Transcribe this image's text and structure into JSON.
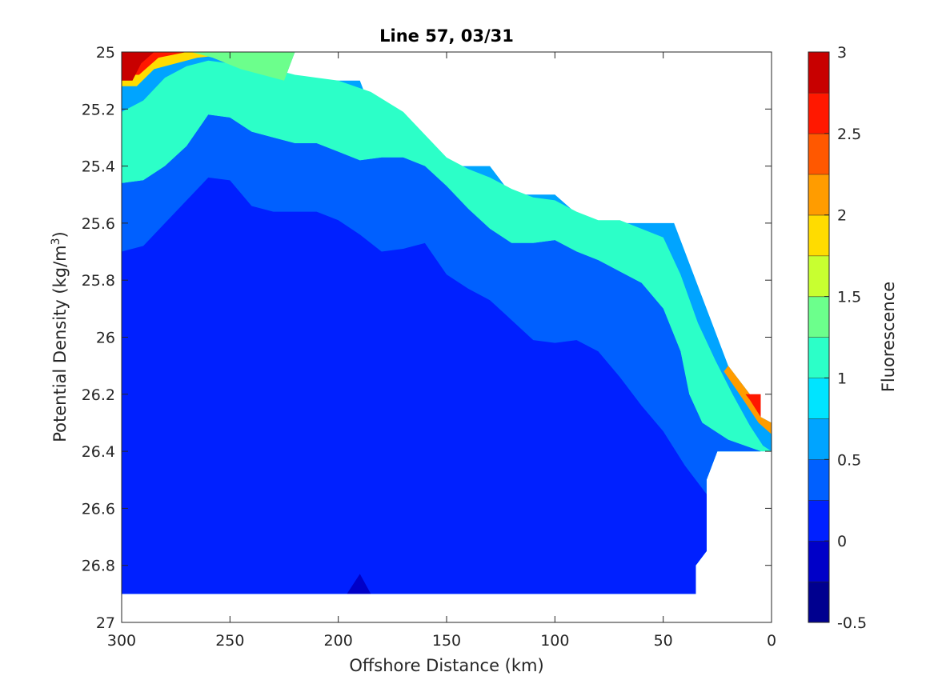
{
  "chart_data": {
    "type": "heatmap",
    "subtype": "filled-contour",
    "title": "Line 57, 03/31",
    "xlabel": "Offshore Distance (km)",
    "ylabel_prefix": "Potential Density (kg/m",
    "ylabel_exponent": "3",
    "ylabel_suffix": ")",
    "colorbar_label": "Fluorescence",
    "xlim": [
      300,
      0
    ],
    "x_reversed": true,
    "ylim": [
      25,
      27
    ],
    "y_reversed": true,
    "x_ticks": [
      "300",
      "250",
      "200",
      "150",
      "100",
      "50",
      "0"
    ],
    "y_ticks": [
      "25",
      "25.2",
      "25.4",
      "25.6",
      "25.8",
      "26",
      "26.2",
      "26.4",
      "26.6",
      "26.8",
      "27"
    ],
    "colorbar_ticks": [
      "3",
      "2.5",
      "2",
      "1.5",
      "1",
      "0.5",
      "0",
      "-0.5"
    ],
    "colorbar_range": [
      -0.5,
      3
    ],
    "levels": [
      -0.5,
      -0.25,
      0,
      0.25,
      0.5,
      0.75,
      1,
      1.25,
      1.5,
      1.75,
      2,
      2.25,
      2.5,
      2.75,
      3
    ],
    "colors": [
      "#00008f",
      "#0000c8",
      "#0020ff",
      "#0060ff",
      "#00a4ff",
      "#00e4ff",
      "#2cffc8",
      "#6cff8c",
      "#c8ff30",
      "#ffdc00",
      "#ff9c00",
      "#ff5800",
      "#ff1800",
      "#c80000"
    ],
    "grid": false,
    "data_boundary": [
      [
        300,
        25.0
      ],
      [
        220,
        25.0
      ],
      [
        225,
        25.1
      ],
      [
        200,
        25.1
      ],
      [
        190,
        25.1
      ],
      [
        185,
        25.2
      ],
      [
        175,
        25.2
      ],
      [
        168,
        25.3
      ],
      [
        160,
        25.3
      ],
      [
        155,
        25.4
      ],
      [
        130,
        25.4
      ],
      [
        120,
        25.5
      ],
      [
        100,
        25.5
      ],
      [
        85,
        25.6
      ],
      [
        45,
        25.6
      ],
      [
        20,
        26.1
      ],
      [
        10,
        26.2
      ],
      [
        5,
        26.28
      ],
      [
        0,
        26.3
      ],
      [
        0,
        26.4
      ],
      [
        25,
        26.4
      ],
      [
        30,
        26.5
      ],
      [
        30,
        26.75
      ],
      [
        35,
        26.8
      ],
      [
        35,
        26.9
      ],
      [
        300,
        26.9
      ]
    ],
    "contour_regions": [
      {
        "level_index": 3,
        "value_range": [
          0.25,
          0.5
        ],
        "points": [
          [
            300,
            25.46
          ],
          [
            290,
            25.45
          ],
          [
            280,
            25.4
          ],
          [
            270,
            25.33
          ],
          [
            260,
            25.22
          ],
          [
            250,
            25.23
          ],
          [
            240,
            25.28
          ],
          [
            230,
            25.3
          ],
          [
            220,
            25.32
          ],
          [
            210,
            25.32
          ],
          [
            200,
            25.35
          ],
          [
            190,
            25.38
          ],
          [
            180,
            25.37
          ],
          [
            170,
            25.37
          ],
          [
            160,
            25.4
          ],
          [
            150,
            25.47
          ],
          [
            140,
            25.55
          ],
          [
            130,
            25.62
          ],
          [
            120,
            25.67
          ],
          [
            110,
            25.67
          ],
          [
            100,
            25.66
          ],
          [
            90,
            25.7
          ],
          [
            80,
            25.73
          ],
          [
            70,
            25.77
          ],
          [
            60,
            25.81
          ],
          [
            50,
            25.9
          ],
          [
            42,
            26.05
          ],
          [
            38,
            26.2
          ],
          [
            32,
            26.3
          ],
          [
            20,
            26.36
          ],
          [
            5,
            26.4
          ],
          [
            25,
            26.4
          ],
          [
            30,
            26.5
          ],
          [
            30,
            26.75
          ],
          [
            35,
            26.8
          ],
          [
            35,
            26.9
          ],
          [
            300,
            26.9
          ]
        ]
      },
      {
        "level_index": 2,
        "value_range": [
          0,
          0.25
        ],
        "points": [
          [
            300,
            25.7
          ],
          [
            290,
            25.68
          ],
          [
            280,
            25.6
          ],
          [
            270,
            25.52
          ],
          [
            260,
            25.44
          ],
          [
            250,
            25.45
          ],
          [
            240,
            25.54
          ],
          [
            230,
            25.56
          ],
          [
            210,
            25.56
          ],
          [
            200,
            25.59
          ],
          [
            190,
            25.64
          ],
          [
            180,
            25.7
          ],
          [
            170,
            25.69
          ],
          [
            160,
            25.67
          ],
          [
            150,
            25.78
          ],
          [
            140,
            25.83
          ],
          [
            130,
            25.87
          ],
          [
            120,
            25.94
          ],
          [
            110,
            26.01
          ],
          [
            100,
            26.02
          ],
          [
            90,
            26.01
          ],
          [
            80,
            26.05
          ],
          [
            70,
            26.14
          ],
          [
            60,
            26.24
          ],
          [
            50,
            26.33
          ],
          [
            40,
            26.45
          ],
          [
            30,
            26.55
          ],
          [
            30,
            26.75
          ],
          [
            35,
            26.8
          ],
          [
            35,
            26.9
          ],
          [
            300,
            26.9
          ]
        ]
      },
      {
        "level_index": 5,
        "value_range": [
          0.75,
          1.0
        ],
        "points": [
          [
            300,
            25.27
          ],
          [
            290,
            25.22
          ],
          [
            280,
            25.15
          ],
          [
            270,
            25.12
          ],
          [
            260,
            25.09
          ],
          [
            250,
            25.1
          ],
          [
            240,
            25.12
          ],
          [
            230,
            25.13
          ],
          [
            220,
            25.15
          ],
          [
            210,
            25.18
          ],
          [
            200,
            25.18
          ],
          [
            190,
            25.2
          ],
          [
            180,
            25.24
          ],
          [
            170,
            25.27
          ],
          [
            160,
            25.31
          ],
          [
            150,
            25.4
          ],
          [
            140,
            25.46
          ],
          [
            130,
            25.51
          ],
          [
            120,
            25.56
          ],
          [
            110,
            25.59
          ],
          [
            100,
            25.6
          ],
          [
            90,
            25.61
          ],
          [
            80,
            25.62
          ],
          [
            70,
            25.64
          ],
          [
            60,
            25.66
          ],
          [
            50,
            25.7
          ],
          [
            42,
            25.85
          ],
          [
            36,
            26.05
          ],
          [
            28,
            26.22
          ],
          [
            20,
            26.33
          ],
          [
            8,
            26.39
          ],
          [
            5,
            26.4
          ],
          [
            25,
            26.4
          ],
          [
            30,
            26.5
          ],
          [
            30,
            26.75
          ],
          [
            35,
            26.8
          ],
          [
            35,
            26.9
          ],
          [
            300,
            26.9
          ]
        ]
      },
      {
        "level_index": 6,
        "value_range": [
          1.0,
          1.25
        ],
        "points": [
          [
            300,
            25.21
          ],
          [
            290,
            25.17
          ],
          [
            280,
            25.09
          ],
          [
            270,
            25.05
          ],
          [
            260,
            25.03
          ],
          [
            250,
            25.04
          ],
          [
            240,
            25.05
          ],
          [
            230,
            25.06
          ],
          [
            220,
            25.08
          ],
          [
            210,
            25.09
          ],
          [
            200,
            25.1
          ],
          [
            185,
            25.14
          ],
          [
            170,
            25.21
          ],
          [
            160,
            25.29
          ],
          [
            150,
            25.37
          ],
          [
            140,
            25.41
          ],
          [
            130,
            25.44
          ],
          [
            120,
            25.48
          ],
          [
            110,
            25.51
          ],
          [
            100,
            25.52
          ],
          [
            90,
            25.56
          ],
          [
            80,
            25.59
          ],
          [
            70,
            25.59
          ],
          [
            60,
            25.62
          ],
          [
            50,
            25.65
          ],
          [
            42,
            25.78
          ],
          [
            34,
            25.95
          ],
          [
            26,
            26.08
          ],
          [
            18,
            26.2
          ],
          [
            10,
            26.31
          ],
          [
            4,
            26.38
          ],
          [
            0,
            26.4
          ],
          [
            25,
            26.4
          ],
          [
            30,
            26.5
          ],
          [
            30,
            26.75
          ],
          [
            35,
            26.8
          ],
          [
            35,
            26.9
          ],
          [
            300,
            26.9
          ]
        ]
      }
    ]
  }
}
